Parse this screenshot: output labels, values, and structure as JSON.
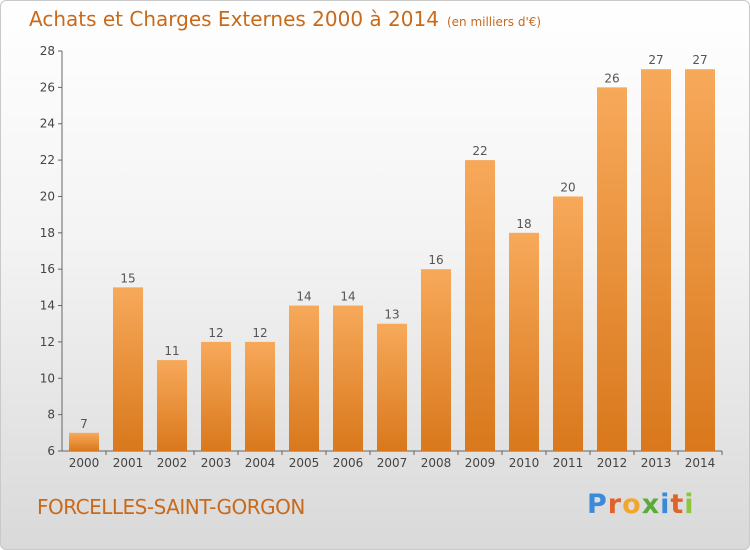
{
  "header": {
    "title": "Achats et Charges Externes 2000 à 2014",
    "subtitle": "(en milliers d'€)"
  },
  "footer": {
    "town": "FORCELLES-SAINT-GORGON",
    "logo_letters": [
      "P",
      "r",
      "o",
      "x",
      "i",
      "t",
      "i"
    ],
    "logo_colors": [
      "#3a8ad8",
      "#e0632a",
      "#f1a72f",
      "#5aaa3c",
      "#3a8ad8",
      "#e0632a",
      "#8cc63f"
    ]
  },
  "chart_data": {
    "type": "bar",
    "title": "Achats et Charges Externes 2000 à 2014",
    "subtitle": "(en milliers d'€)",
    "categories": [
      "2000",
      "2001",
      "2002",
      "2003",
      "2004",
      "2005",
      "2006",
      "2007",
      "2008",
      "2009",
      "2010",
      "2011",
      "2012",
      "2013",
      "2014"
    ],
    "values": [
      7,
      15,
      11,
      12,
      12,
      14,
      14,
      13,
      16,
      22,
      18,
      20,
      26,
      27,
      27
    ],
    "ylim": [
      6,
      28
    ],
    "yticks": [
      6,
      8,
      10,
      12,
      14,
      16,
      18,
      20,
      22,
      24,
      26,
      28
    ],
    "xlabel": "",
    "ylabel": "",
    "grid": false,
    "bar_color_top": "#f7a95a",
    "bar_color_bottom": "#d9781c"
  }
}
